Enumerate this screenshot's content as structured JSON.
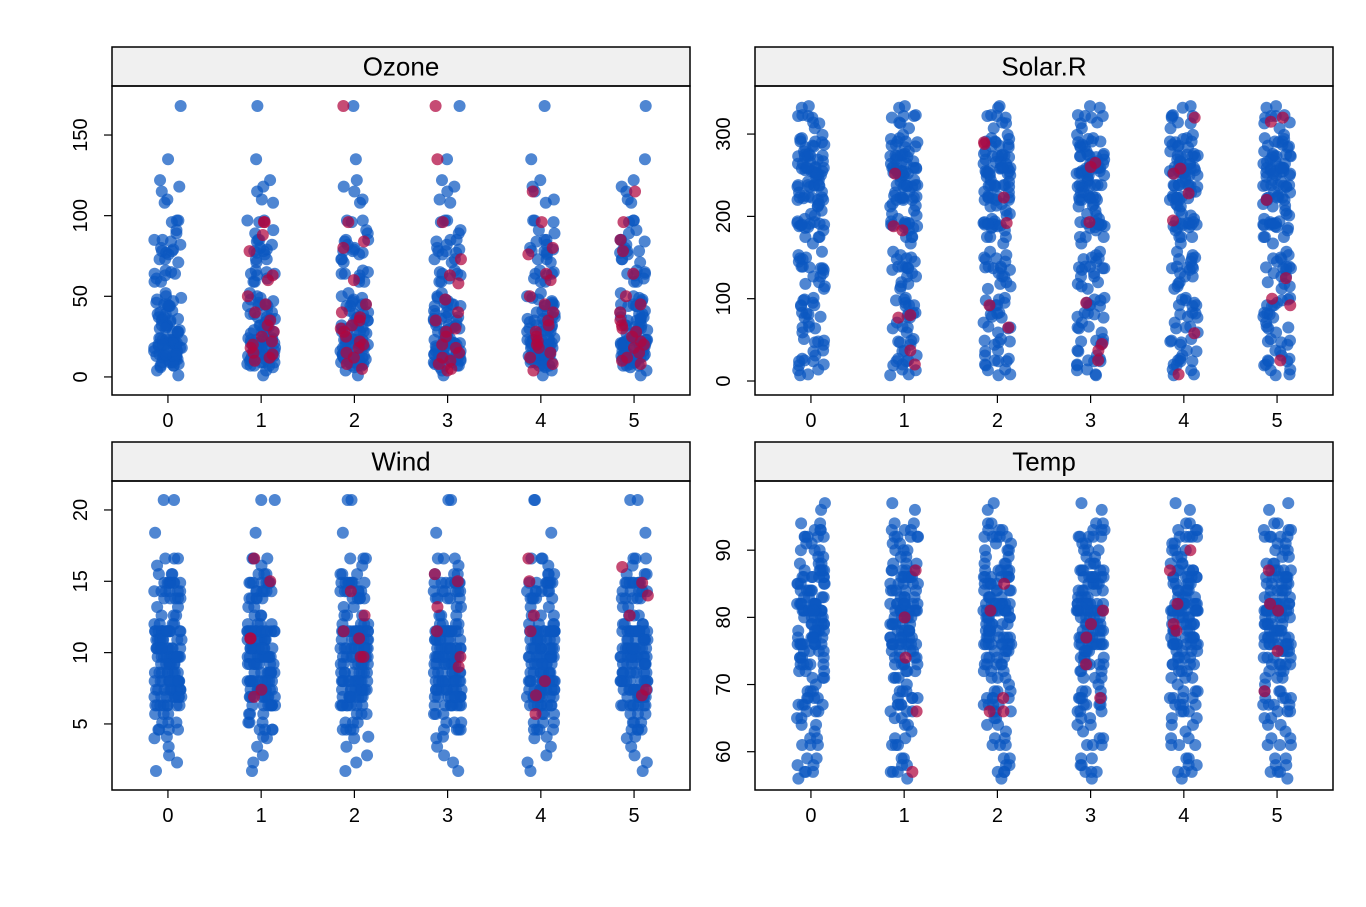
{
  "chart_data": [
    {
      "type": "strip",
      "title": "Ozone",
      "xlim": [
        -0.6,
        5.6
      ],
      "xticks": [
        0,
        1,
        2,
        3,
        4,
        5
      ],
      "ylim": [
        -11.2,
        180.4
      ],
      "yticks": [
        0,
        50,
        100,
        150
      ],
      "observed_color": "#0b57c0",
      "imputed_color": "#b0063f",
      "observed": [
        41,
        36,
        12,
        18,
        28,
        23,
        19,
        8,
        7,
        16,
        11,
        14,
        18,
        14,
        34,
        6,
        30,
        11,
        1,
        11,
        4,
        32,
        23,
        45,
        115,
        37,
        29,
        71,
        39,
        23,
        21,
        37,
        20,
        12,
        13,
        135,
        49,
        32,
        64,
        40,
        77,
        97,
        97,
        85,
        10,
        27,
        7,
        48,
        35,
        61,
        79,
        63,
        16,
        80,
        108,
        20,
        52,
        82,
        50,
        64,
        59,
        39,
        9,
        16,
        78,
        35,
        66,
        122,
        89,
        110,
        44,
        28,
        65,
        22,
        59,
        23,
        31,
        44,
        21,
        9,
        45,
        168,
        73,
        76,
        118,
        84,
        85,
        96,
        78,
        73,
        91,
        47,
        32,
        20,
        23,
        21,
        24,
        44,
        21,
        28,
        9,
        13,
        46,
        18,
        13,
        24,
        16,
        13,
        23,
        36,
        7,
        14,
        30,
        14,
        18,
        20
      ],
      "imputed": [
        [
          96,
          96,
          88,
          78,
          63,
          60,
          50,
          45,
          40,
          35,
          32,
          28,
          25,
          22,
          20,
          18,
          15,
          14,
          12,
          10
        ],
        [
          168,
          96,
          84,
          80,
          60,
          45,
          40,
          37,
          35,
          32,
          30,
          28,
          25,
          22,
          20,
          18,
          15,
          12,
          8,
          5
        ],
        [
          168,
          135,
          96,
          73,
          63,
          58,
          48,
          40,
          35,
          30,
          28,
          25,
          20,
          18,
          15,
          12,
          10,
          8,
          5,
          4
        ],
        [
          115,
          96,
          80,
          76,
          64,
          60,
          50,
          45,
          40,
          35,
          32,
          28,
          25,
          22,
          20,
          18,
          15,
          12,
          8,
          4
        ],
        [
          115,
          96,
          85,
          78,
          64,
          50,
          45,
          40,
          35,
          32,
          30,
          28,
          25,
          22,
          20,
          18,
          15,
          12,
          10,
          8
        ]
      ]
    },
    {
      "type": "strip",
      "title": "Solar.R",
      "xlim": [
        -0.6,
        5.6
      ],
      "xticks": [
        0,
        1,
        2,
        3,
        4,
        5
      ],
      "ylim": [
        -17,
        358.4
      ],
      "yticks": [
        0,
        100,
        200,
        300
      ],
      "observed_color": "#0b57c0",
      "imputed_color": "#b0063f",
      "observed": [
        190,
        118,
        149,
        313,
        299,
        99,
        19,
        194,
        256,
        290,
        274,
        65,
        334,
        307,
        78,
        322,
        44,
        8,
        320,
        25,
        92,
        66,
        266,
        13,
        252,
        223,
        279,
        286,
        287,
        242,
        186,
        220,
        264,
        127,
        273,
        291,
        323,
        259,
        250,
        148,
        332,
        322,
        191,
        284,
        37,
        120,
        137,
        150,
        59,
        91,
        250,
        135,
        127,
        47,
        98,
        31,
        138,
        269,
        248,
        236,
        101,
        175,
        314,
        276,
        267,
        272,
        175,
        139,
        264,
        175,
        291,
        48,
        260,
        274,
        285,
        187,
        220,
        7,
        258,
        295,
        294,
        223,
        81,
        82,
        213,
        275,
        253,
        254,
        83,
        24,
        77,
        255,
        229,
        207,
        222,
        137,
        192,
        273,
        157,
        64,
        71,
        51,
        115,
        244,
        190,
        259,
        36,
        255,
        212,
        238,
        215,
        153,
        203,
        225,
        237,
        188,
        167,
        197,
        183,
        189,
        95,
        92,
        252,
        220,
        230,
        259,
        236,
        259,
        238,
        24,
        112,
        237,
        224,
        27,
        238,
        201,
        238,
        14,
        139,
        49,
        20,
        193,
        145,
        191,
        131,
        223
      ],
      "imputed": [
        [
          252,
          188,
          183,
          80,
          77,
          37,
          20
        ],
        [
          290,
          288,
          223,
          192,
          92,
          65
        ],
        [
          265,
          260,
          193,
          95,
          45,
          37,
          25
        ],
        [
          320,
          258,
          252,
          228,
          195,
          58,
          8
        ],
        [
          320,
          315,
          220,
          125,
          100,
          92,
          25
        ]
      ]
    },
    {
      "type": "strip",
      "title": "Wind",
      "xlim": [
        -0.6,
        5.6
      ],
      "xticks": [
        0,
        1,
        2,
        3,
        4,
        5
      ],
      "ylim": [
        0.37,
        22.03
      ],
      "yticks": [
        5,
        10,
        15,
        20
      ],
      "observed_color": "#0b57c0",
      "imputed_color": "#b0063f",
      "observed": [
        7.4,
        8,
        12.6,
        11.5,
        14.3,
        14.9,
        8.6,
        13.8,
        20.7,
        8.6,
        6.9,
        9.7,
        9.2,
        10.9,
        13.2,
        11.5,
        12,
        18.4,
        11.5,
        9.7,
        9.7,
        16.6,
        9.7,
        12,
        16.6,
        14.9,
        8,
        12,
        14.9,
        5.7,
        7.4,
        8.6,
        9.7,
        16.1,
        9.2,
        8.6,
        14.3,
        9.7,
        6.9,
        13.8,
        11.5,
        10.9,
        9.2,
        8,
        13.8,
        11.5,
        14.9,
        20.7,
        9.2,
        11.5,
        10.3,
        6.3,
        1.7,
        4.6,
        6.3,
        8,
        8,
        10.3,
        11.5,
        14.9,
        8,
        4.1,
        9.2,
        9.2,
        10.9,
        4.6,
        10.9,
        5.1,
        6.3,
        5.7,
        7.4,
        8.6,
        14.3,
        14.9,
        14.9,
        14.3,
        6.9,
        10.3,
        6.3,
        5.1,
        11.5,
        6.9,
        9.7,
        11.5,
        8.6,
        8,
        8.6,
        12,
        7.4,
        7.4,
        7.4,
        9.2,
        6.9,
        13.8,
        7.4,
        6.9,
        7.4,
        4.6,
        4,
        10.3,
        8,
        8.6,
        11.5,
        11.5,
        11.5,
        9.7,
        11.5,
        10.3,
        6.3,
        7.4,
        10.9,
        10.3,
        15.5,
        14.3,
        12.6,
        9.7,
        3.4,
        8,
        5.7,
        9.7,
        2.3,
        6.3,
        6.3,
        6.9,
        5.1,
        2.8,
        4.6,
        7.4,
        15.5,
        10.9,
        10.3,
        10.9,
        9.7,
        14.9,
        15.5,
        6.3,
        10.9,
        11.5,
        6.9,
        13.8,
        10.3,
        10.3,
        8,
        12.6,
        9.2,
        10.3,
        10.3,
        16.6,
        6.9,
        13.2,
        14.3,
        8,
        11.5
      ],
      "imputed": [
        [
          15,
          7.4,
          11,
          11,
          6.9,
          16.6
        ],
        [
          9.7,
          11.5,
          12.6,
          9.7,
          14.3,
          11
        ],
        [
          15,
          15.5,
          9.7,
          13.2,
          11.5,
          9
        ],
        [
          16.6,
          7,
          5.7,
          11.5,
          15,
          8,
          12.6
        ],
        [
          12.6,
          7.4,
          16,
          7,
          14.9,
          14
        ]
      ]
    },
    {
      "type": "strip",
      "title": "Temp",
      "xlim": [
        -0.6,
        5.6
      ],
      "xticks": [
        0,
        1,
        2,
        3,
        4,
        5
      ],
      "ylim": [
        54.3,
        100.3
      ],
      "yticks": [
        60,
        70,
        80,
        90
      ],
      "observed_color": "#0b57c0",
      "imputed_color": "#b0063f",
      "observed": [
        67,
        72,
        74,
        62,
        56,
        66,
        65,
        59,
        61,
        69,
        74,
        69,
        66,
        68,
        58,
        64,
        66,
        57,
        68,
        62,
        59,
        73,
        61,
        61,
        57,
        58,
        57,
        67,
        81,
        79,
        76,
        78,
        74,
        67,
        84,
        85,
        79,
        82,
        87,
        90,
        87,
        93,
        92,
        82,
        80,
        79,
        77,
        72,
        65,
        73,
        76,
        77,
        76,
        76,
        76,
        75,
        78,
        73,
        80,
        77,
        83,
        84,
        85,
        81,
        84,
        83,
        83,
        88,
        92,
        92,
        89,
        82,
        73,
        81,
        91,
        80,
        81,
        82,
        84,
        87,
        85,
        74,
        81,
        82,
        86,
        85,
        82,
        86,
        88,
        86,
        83,
        81,
        81,
        81,
        82,
        86,
        85,
        87,
        89,
        90,
        90,
        92,
        86,
        86,
        82,
        80,
        79,
        77,
        79,
        76,
        78,
        78,
        77,
        72,
        75,
        79,
        81,
        86,
        88,
        97,
        94,
        96,
        94,
        91,
        92,
        93,
        93,
        87,
        84,
        80,
        78,
        75,
        73,
        81,
        76,
        77,
        71,
        71,
        78,
        67,
        76,
        68,
        82,
        64,
        71,
        81,
        69,
        63,
        70,
        77,
        75,
        76,
        68
      ],
      "imputed": [
        [
          57,
          80,
          87,
          74,
          66
        ],
        [
          85,
          81,
          66,
          68,
          66
        ],
        [
          81,
          79,
          77,
          73,
          68
        ],
        [
          90,
          87,
          82,
          79,
          78
        ],
        [
          87,
          82,
          81,
          75,
          69
        ]
      ]
    }
  ]
}
